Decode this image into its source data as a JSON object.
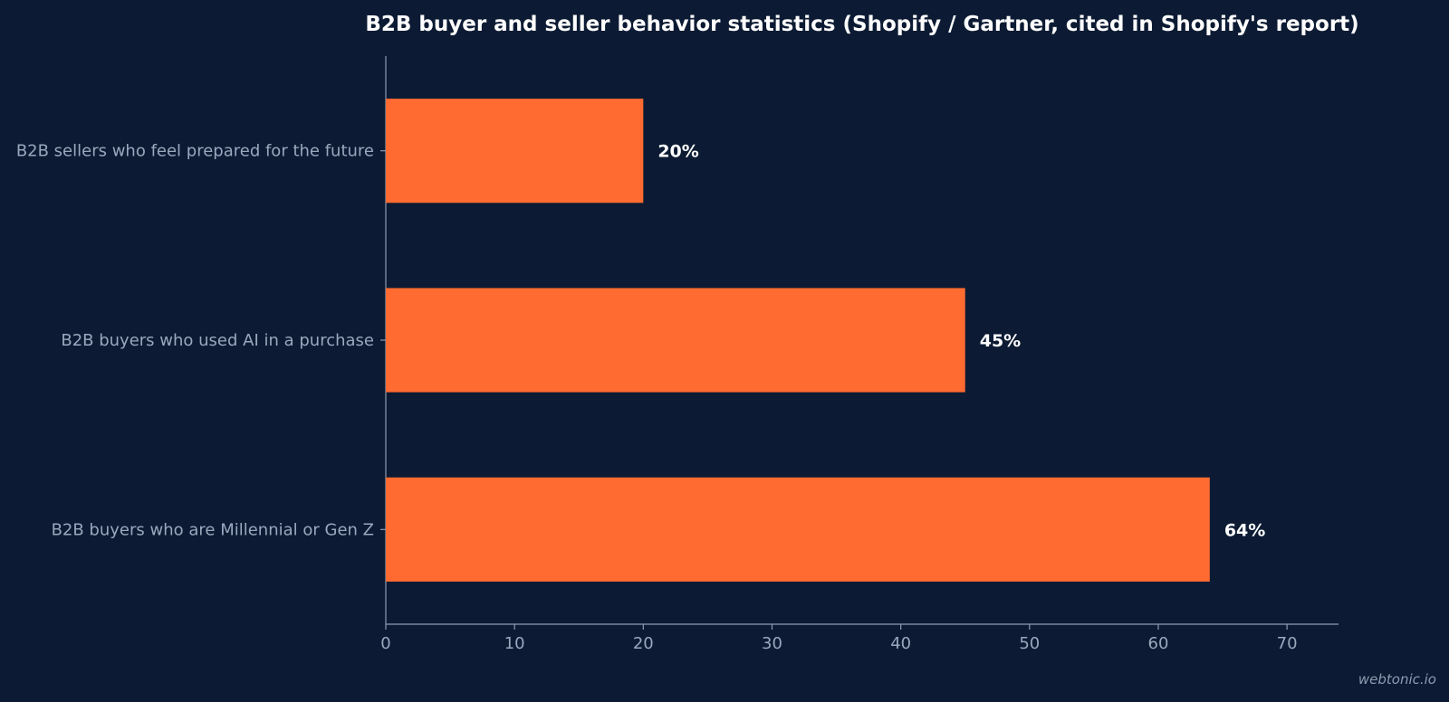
{
  "chart_data": {
    "type": "bar",
    "orientation": "horizontal",
    "title": "B2B buyer and seller behavior statistics (Shopify / Gartner, cited in Shopify's report)",
    "xlabel": "",
    "ylabel": "",
    "categories": [
      "B2B sellers who feel prepared for the future",
      "B2B buyers who used AI in a purchase",
      "B2B buyers who are Millennial or Gen Z"
    ],
    "values": [
      20,
      45,
      64
    ],
    "value_labels": [
      "20%",
      "45%",
      "64%"
    ],
    "xlim": [
      0,
      74
    ],
    "xticks": [
      0,
      10,
      20,
      30,
      40,
      50,
      60,
      70
    ],
    "grid": false,
    "bar_color": "#ff6b30",
    "background_color": "#0c1b33",
    "text_color": "#9aa8bd"
  },
  "watermark": "webtonic.io"
}
